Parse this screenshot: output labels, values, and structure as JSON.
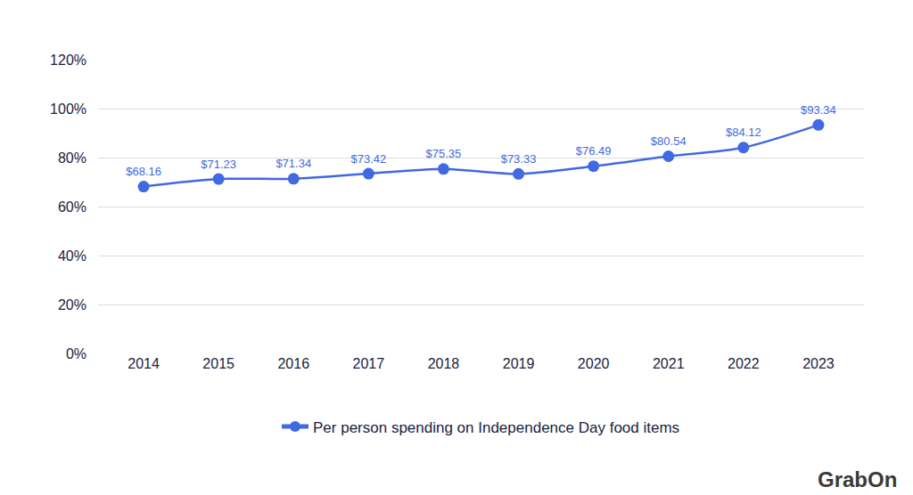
{
  "chart_data": {
    "type": "line",
    "categories": [
      "2014",
      "2015",
      "2016",
      "2017",
      "2018",
      "2019",
      "2020",
      "2021",
      "2022",
      "2023"
    ],
    "series": [
      {
        "name": "Per person spending on Independence Day food items",
        "color": "#4169e1",
        "values": [
          68.16,
          71.23,
          71.34,
          73.42,
          75.35,
          73.33,
          76.49,
          80.54,
          84.12,
          93.34
        ],
        "value_labels": [
          "$68.16",
          "$71.23",
          "$71.34",
          "$73.42",
          "$75.35",
          "$73.33",
          "$76.49",
          "$80.54",
          "$84.12",
          "$93.34"
        ]
      }
    ],
    "ylim": [
      0,
      120
    ],
    "yticks": [
      {
        "value": 0,
        "label": "0%"
      },
      {
        "value": 20,
        "label": "20%"
      },
      {
        "value": 40,
        "label": "40%"
      },
      {
        "value": 60,
        "label": "60%"
      },
      {
        "value": 80,
        "label": "80%"
      },
      {
        "value": 100,
        "label": "100%"
      },
      {
        "value": 120,
        "label": "120%"
      }
    ],
    "grid": true,
    "legend": "bottom",
    "data_labels": true,
    "marker": "circle",
    "line_style": "solid",
    "annotations": [
      "GrabOn"
    ]
  }
}
